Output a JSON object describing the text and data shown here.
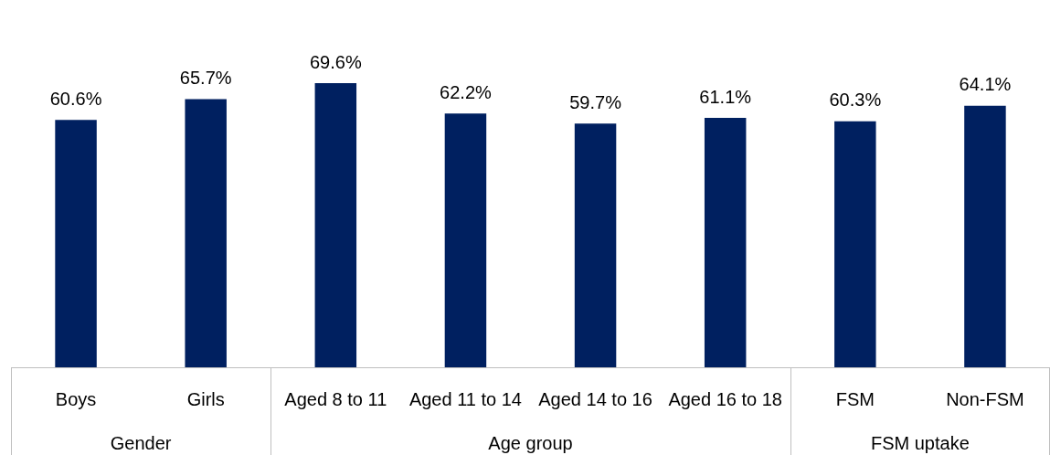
{
  "chart_data": {
    "type": "bar",
    "categories": [
      "Boys",
      "Girls",
      "Aged 8 to 11",
      "Aged 11 to 14",
      "Aged 14 to 16",
      "Aged 16 to 18",
      "FSM",
      "Non-FSM"
    ],
    "values": [
      60.6,
      65.7,
      69.6,
      62.2,
      59.7,
      61.1,
      60.3,
      64.1
    ],
    "value_labels": [
      "60.6%",
      "65.7%",
      "69.6%",
      "62.2%",
      "59.7%",
      "61.1%",
      "60.3%",
      "64.1%"
    ],
    "color": "#002060",
    "grid": false,
    "legend": false,
    "annotations": [
      "Gender",
      "Age group",
      "FSM uptake"
    ]
  }
}
